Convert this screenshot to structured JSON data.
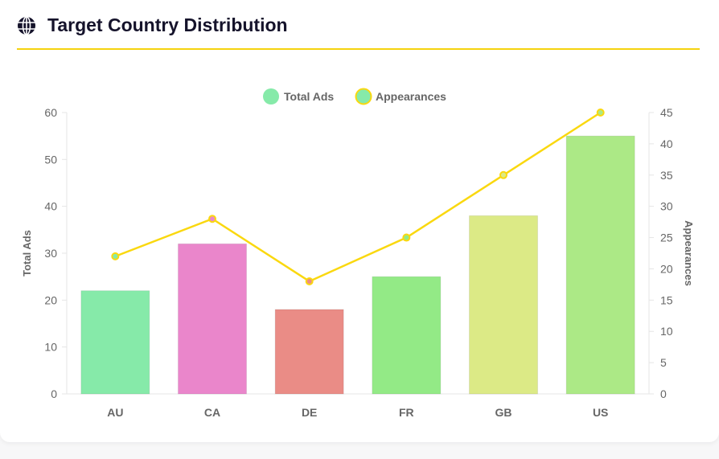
{
  "header": {
    "title": "Target Country Distribution",
    "icon": "globe-icon"
  },
  "chart_data": {
    "type": "bar",
    "categories": [
      "AU",
      "CA",
      "DE",
      "FR",
      "GB",
      "US"
    ],
    "series": [
      {
        "name": "Total Ads",
        "type": "bar",
        "axis": "left",
        "values": [
          22,
          32,
          18,
          25,
          38,
          55
        ],
        "colors": [
          "#86eaa9",
          "#ea86cb",
          "#ea8c86",
          "#93ea86",
          "#dcea86",
          "#ace986"
        ]
      },
      {
        "name": "Appearances",
        "type": "line",
        "axis": "right",
        "values": [
          22,
          28,
          18,
          25,
          35,
          45
        ],
        "color": "#fad80f"
      }
    ],
    "ylabel": "Total Ads",
    "y2label": "Appearances",
    "ylim": [
      0,
      60
    ],
    "y2lim": [
      0,
      45
    ],
    "yticks": [
      0,
      10,
      20,
      30,
      40,
      50,
      60
    ],
    "y2ticks": [
      0,
      5,
      10,
      15,
      20,
      25,
      30,
      35,
      40,
      45
    ],
    "legend": "top",
    "grid": false
  }
}
